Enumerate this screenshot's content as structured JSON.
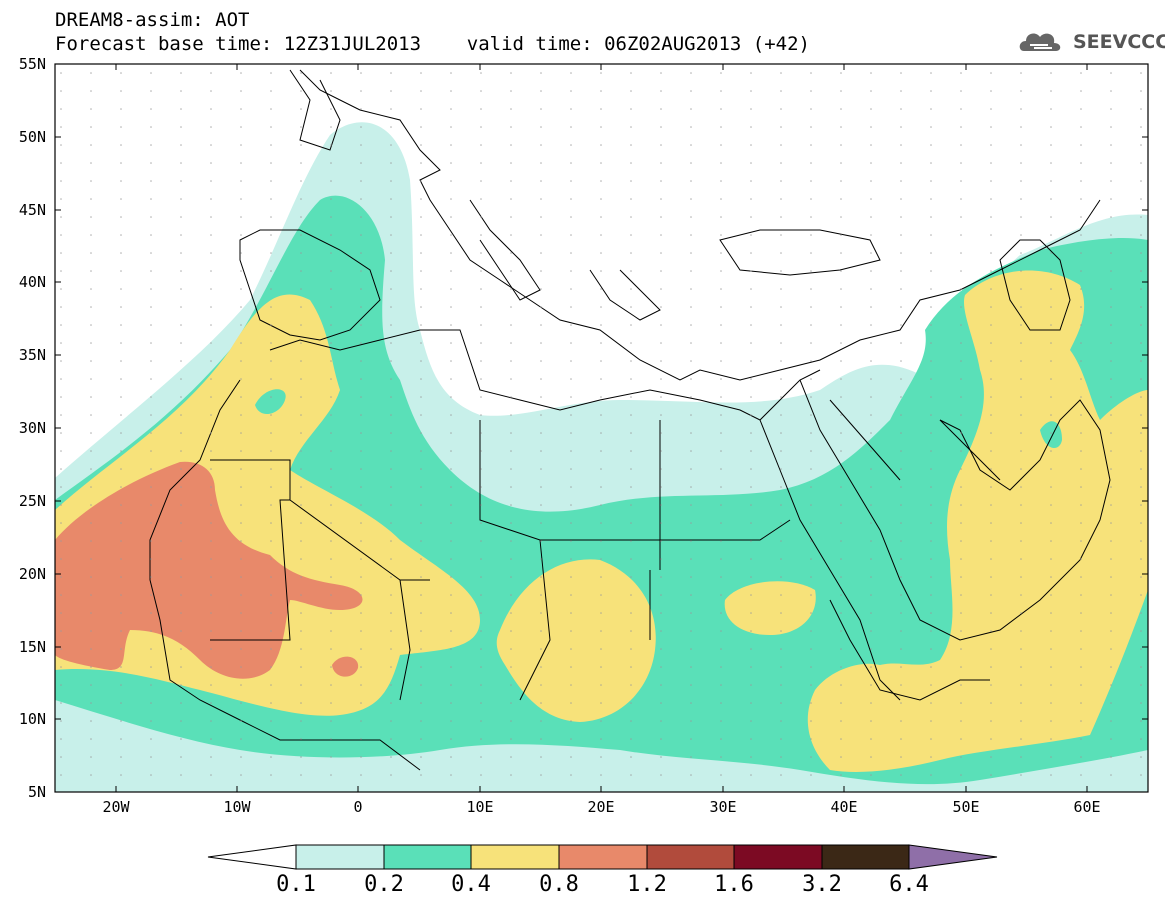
{
  "title_line1": "DREAM8-assim: AOT",
  "title_line2": "Forecast base time: 12Z31JUL2013    valid time: 06Z02AUG2013 (+42)",
  "logo_text": "SEEVCCC",
  "lat_labels": [
    "55N",
    "50N",
    "45N",
    "40N",
    "35N",
    "30N",
    "25N",
    "20N",
    "15N",
    "10N",
    "5N"
  ],
  "lon_labels": [
    "20W",
    "10W",
    "0",
    "10E",
    "20E",
    "30E",
    "40E",
    "50E",
    "60E"
  ],
  "colorbar": {
    "labels": [
      "0.1",
      "0.2",
      "0.4",
      "0.8",
      "1.2",
      "1.6",
      "3.2",
      "6.4"
    ],
    "colors": [
      "#ffffff",
      "#c8f0ea",
      "#5ae0b8",
      "#f7e27a",
      "#e8896a",
      "#b14b3c",
      "#7c0a23",
      "#3b2816",
      "#8f6fa8"
    ]
  },
  "map_colors": {
    "c01": "#c8f0ea",
    "c02": "#5ae0b8",
    "c04": "#f7e27a",
    "c08": "#e8896a"
  }
}
